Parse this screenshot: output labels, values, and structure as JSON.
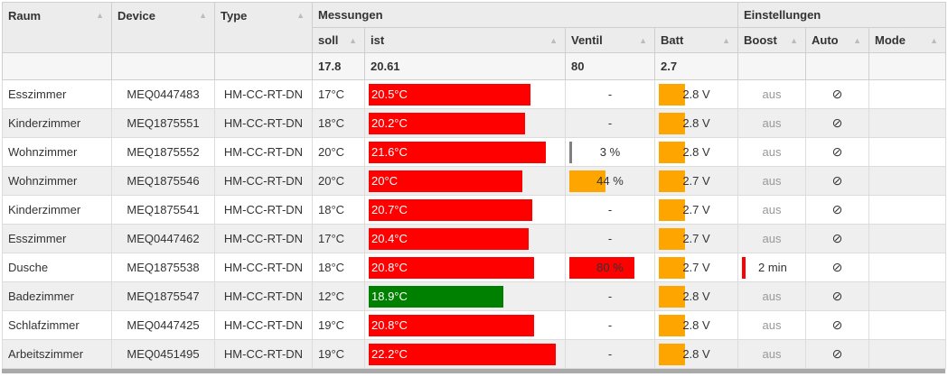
{
  "headers": {
    "raum": "Raum",
    "device": "Device",
    "type": "Type",
    "messungen": "Messungen",
    "einstellungen": "Einstellungen",
    "soll": "soll",
    "ist": "ist",
    "ventil": "Ventil",
    "batt": "Batt",
    "boost": "Boost",
    "auto": "Auto",
    "mode": "Mode"
  },
  "averages": {
    "soll": "17.8",
    "ist": "20.61",
    "ventil": "80",
    "batt": "2.7"
  },
  "icons": {
    "sort": "sort-arrow-icon",
    "auto": "disabled-circle-icon"
  },
  "colors": {
    "hot": "#ff0000",
    "ok": "#008000",
    "battery": "#ffa500",
    "valve_low": "#808080",
    "valve_mid": "#ffa500",
    "valve_high": "#ff0000",
    "boost": "#ff0000"
  },
  "rows": [
    {
      "raum": "Esszimmer",
      "device": "MEQ0447483",
      "type": "HM-CC-RT-DN",
      "soll": "17°C",
      "ist": "20.5°C",
      "ist_level": 0.84,
      "ist_color": "#ff0000",
      "ventil": "-",
      "ventil_level": 0,
      "ventil_color": "",
      "batt": "2.8 V",
      "batt_level": 0.35,
      "boost": "aus",
      "boost_active": false,
      "auto": "⊘",
      "mode": ""
    },
    {
      "raum": "Kinderzimmer",
      "device": "MEQ1875551",
      "type": "HM-CC-RT-DN",
      "soll": "18°C",
      "ist": "20.2°C",
      "ist_level": 0.81,
      "ist_color": "#ff0000",
      "ventil": "-",
      "ventil_level": 0,
      "ventil_color": "",
      "batt": "2.8 V",
      "batt_level": 0.35,
      "boost": "aus",
      "boost_active": false,
      "auto": "⊘",
      "mode": ""
    },
    {
      "raum": "Wohnzimmer",
      "device": "MEQ1875552",
      "type": "HM-CC-RT-DN",
      "soll": "20°C",
      "ist": "21.6°C",
      "ist_level": 0.92,
      "ist_color": "#ff0000",
      "ventil": "3 %",
      "ventil_level": 0.03,
      "ventil_color": "#808080",
      "batt": "2.8 V",
      "batt_level": 0.35,
      "boost": "aus",
      "boost_active": false,
      "auto": "⊘",
      "mode": ""
    },
    {
      "raum": "Wohnzimmer",
      "device": "MEQ1875546",
      "type": "HM-CC-RT-DN",
      "soll": "20°C",
      "ist": "20°C",
      "ist_level": 0.8,
      "ist_color": "#ff0000",
      "ventil": "44 %",
      "ventil_level": 0.44,
      "ventil_color": "#ffa500",
      "batt": "2.7 V",
      "batt_level": 0.35,
      "boost": "aus",
      "boost_active": false,
      "auto": "⊘",
      "mode": ""
    },
    {
      "raum": "Kinderzimmer",
      "device": "MEQ1875541",
      "type": "HM-CC-RT-DN",
      "soll": "18°C",
      "ist": "20.7°C",
      "ist_level": 0.85,
      "ist_color": "#ff0000",
      "ventil": "-",
      "ventil_level": 0,
      "ventil_color": "",
      "batt": "2.7 V",
      "batt_level": 0.35,
      "boost": "aus",
      "boost_active": false,
      "auto": "⊘",
      "mode": ""
    },
    {
      "raum": "Esszimmer",
      "device": "MEQ0447462",
      "type": "HM-CC-RT-DN",
      "soll": "17°C",
      "ist": "20.4°C",
      "ist_level": 0.83,
      "ist_color": "#ff0000",
      "ventil": "-",
      "ventil_level": 0,
      "ventil_color": "",
      "batt": "2.7 V",
      "batt_level": 0.35,
      "boost": "aus",
      "boost_active": false,
      "auto": "⊘",
      "mode": ""
    },
    {
      "raum": "Dusche",
      "device": "MEQ1875538",
      "type": "HM-CC-RT-DN",
      "soll": "18°C",
      "ist": "20.8°C",
      "ist_level": 0.86,
      "ist_color": "#ff0000",
      "ventil": "80 %",
      "ventil_level": 0.8,
      "ventil_color": "#ff0000",
      "batt": "2.7 V",
      "batt_level": 0.35,
      "boost": "2 min",
      "boost_active": true,
      "auto": "⊘",
      "mode": ""
    },
    {
      "raum": "Badezimmer",
      "device": "MEQ1875547",
      "type": "HM-CC-RT-DN",
      "soll": "12°C",
      "ist": "18.9°C",
      "ist_level": 0.7,
      "ist_color": "#008000",
      "ventil": "-",
      "ventil_level": 0,
      "ventil_color": "",
      "batt": "2.8 V",
      "batt_level": 0.35,
      "boost": "aus",
      "boost_active": false,
      "auto": "⊘",
      "mode": ""
    },
    {
      "raum": "Schlafzimmer",
      "device": "MEQ0447425",
      "type": "HM-CC-RT-DN",
      "soll": "19°C",
      "ist": "20.8°C",
      "ist_level": 0.86,
      "ist_color": "#ff0000",
      "ventil": "-",
      "ventil_level": 0,
      "ventil_color": "",
      "batt": "2.8 V",
      "batt_level": 0.35,
      "boost": "aus",
      "boost_active": false,
      "auto": "⊘",
      "mode": ""
    },
    {
      "raum": "Arbeitszimmer",
      "device": "MEQ0451495",
      "type": "HM-CC-RT-DN",
      "soll": "19°C",
      "ist": "22.2°C",
      "ist_level": 0.97,
      "ist_color": "#ff0000",
      "ventil": "-",
      "ventil_level": 0,
      "ventil_color": "",
      "batt": "2.8 V",
      "batt_level": 0.35,
      "boost": "aus",
      "boost_active": false,
      "auto": "⊘",
      "mode": ""
    }
  ]
}
